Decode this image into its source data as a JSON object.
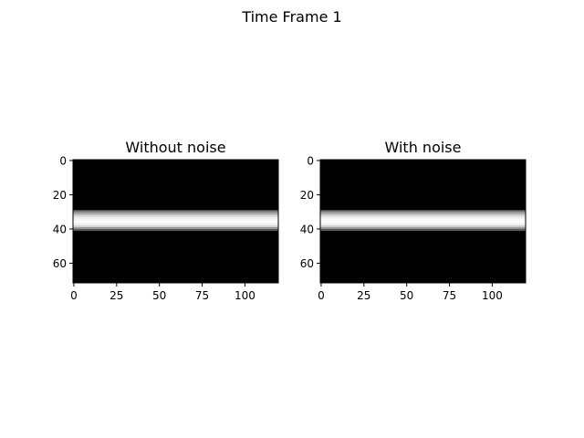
{
  "figure": {
    "suptitle": "Time Frame 1"
  },
  "chart_data": [
    {
      "type": "heatmap",
      "title": "Without noise",
      "colormap": "gray",
      "background_color": "#000000",
      "xlim": [
        -0.5,
        119.5
      ],
      "ylim": [
        71.5,
        -0.5
      ],
      "xticks": [
        0,
        25,
        50,
        75,
        100
      ],
      "yticks": [
        0,
        20,
        40,
        60
      ],
      "band": {
        "rows": [
          29.5,
          40.5
        ],
        "profile": [
          {
            "row": 29.5,
            "intensity": 0.45
          },
          {
            "row": 30.5,
            "intensity": 0.6
          },
          {
            "row": 31.5,
            "intensity": 0.75
          },
          {
            "row": 32.5,
            "intensity": 0.86
          },
          {
            "row": 33.5,
            "intensity": 0.93
          },
          {
            "row": 34.5,
            "intensity": 0.97
          },
          {
            "row": 35.5,
            "intensity": 1.0
          },
          {
            "row": 36.5,
            "intensity": 0.97
          },
          {
            "row": 37.5,
            "intensity": 0.92
          },
          {
            "row": 38.5,
            "intensity": 0.82
          },
          {
            "row": 39.5,
            "intensity": 0.6
          },
          {
            "row": 40.5,
            "intensity": 0.35
          }
        ]
      }
    },
    {
      "type": "heatmap",
      "title": "With noise",
      "colormap": "gray",
      "background_color": "#000000",
      "xlim": [
        -0.5,
        119.5
      ],
      "ylim": [
        71.5,
        -0.5
      ],
      "xticks": [
        0,
        25,
        50,
        75,
        100
      ],
      "yticks": [
        0,
        20,
        40,
        60
      ],
      "band": {
        "rows": [
          29.5,
          40.5
        ],
        "profile": [
          {
            "row": 29.5,
            "intensity": 0.45
          },
          {
            "row": 30.5,
            "intensity": 0.62
          },
          {
            "row": 31.5,
            "intensity": 0.76
          },
          {
            "row": 32.5,
            "intensity": 0.87
          },
          {
            "row": 33.5,
            "intensity": 0.94
          },
          {
            "row": 34.5,
            "intensity": 0.98
          },
          {
            "row": 35.5,
            "intensity": 1.0
          },
          {
            "row": 36.5,
            "intensity": 0.97
          },
          {
            "row": 37.5,
            "intensity": 0.92
          },
          {
            "row": 38.5,
            "intensity": 0.8
          },
          {
            "row": 39.5,
            "intensity": 0.6
          },
          {
            "row": 40.5,
            "intensity": 0.35
          }
        ]
      }
    }
  ]
}
